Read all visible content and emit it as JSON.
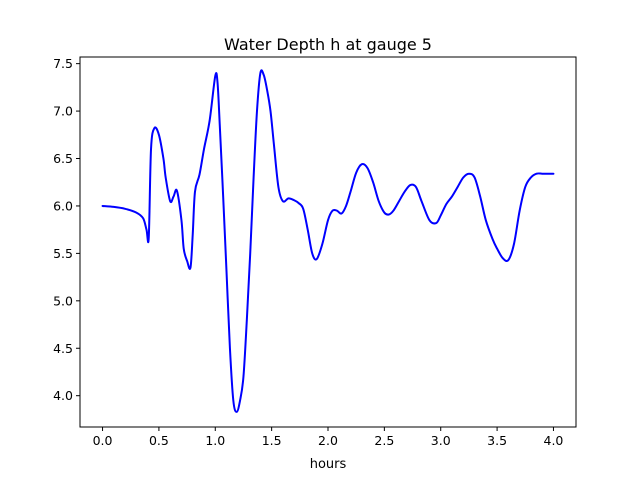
{
  "chart_data": {
    "type": "line",
    "title": "Water Depth h at gauge 5",
    "xlabel": "hours",
    "ylabel": "",
    "xlim": [
      -0.2,
      4.2
    ],
    "ylim": [
      3.67,
      7.57
    ],
    "xticks": [
      0.0,
      0.5,
      1.0,
      1.5,
      2.0,
      2.5,
      3.0,
      3.5,
      4.0
    ],
    "xtick_labels": [
      "0.0",
      "0.5",
      "1.0",
      "1.5",
      "2.0",
      "2.5",
      "3.0",
      "3.5",
      "4.0"
    ],
    "yticks": [
      4.0,
      4.5,
      5.0,
      5.5,
      6.0,
      6.5,
      7.0,
      7.5
    ],
    "ytick_labels": [
      "4.0",
      "4.5",
      "5.0",
      "5.5",
      "6.0",
      "6.5",
      "7.0",
      "7.5"
    ],
    "grid": false,
    "legend": "none",
    "series": [
      {
        "color": "#0000ff",
        "x": [
          0.0,
          0.1,
          0.2,
          0.3,
          0.36,
          0.39,
          0.41,
          0.43,
          0.46,
          0.5,
          0.54,
          0.56,
          0.6,
          0.63,
          0.66,
          0.7,
          0.72,
          0.75,
          0.78,
          0.8,
          0.82,
          0.86,
          0.9,
          0.95,
          1.0,
          1.02,
          1.04,
          1.07,
          1.1,
          1.13,
          1.16,
          1.19,
          1.22,
          1.25,
          1.28,
          1.31,
          1.34,
          1.37,
          1.4,
          1.43,
          1.46,
          1.49,
          1.52,
          1.56,
          1.6,
          1.65,
          1.7,
          1.74,
          1.78,
          1.82,
          1.86,
          1.9,
          1.95,
          2.0,
          2.04,
          2.08,
          2.12,
          2.16,
          2.2,
          2.25,
          2.3,
          2.35,
          2.4,
          2.45,
          2.5,
          2.54,
          2.58,
          2.63,
          2.68,
          2.73,
          2.78,
          2.83,
          2.9,
          2.96,
          3.0,
          3.05,
          3.1,
          3.15,
          3.2,
          3.25,
          3.3,
          3.35,
          3.4,
          3.46,
          3.5,
          3.55,
          3.6,
          3.65,
          3.7,
          3.75,
          3.8,
          3.85,
          3.9,
          3.95,
          4.0
        ],
        "y": [
          6.0,
          5.99,
          5.97,
          5.93,
          5.87,
          5.75,
          5.67,
          6.6,
          6.82,
          6.75,
          6.5,
          6.3,
          6.05,
          6.1,
          6.16,
          5.85,
          5.55,
          5.42,
          5.35,
          5.7,
          6.15,
          6.33,
          6.6,
          6.9,
          7.37,
          7.3,
          6.85,
          6.1,
          5.3,
          4.5,
          3.95,
          3.83,
          3.95,
          4.2,
          4.8,
          5.5,
          6.3,
          7.0,
          7.4,
          7.38,
          7.22,
          7.0,
          6.65,
          6.2,
          6.05,
          6.08,
          6.06,
          6.03,
          5.97,
          5.75,
          5.5,
          5.44,
          5.6,
          5.85,
          5.95,
          5.95,
          5.92,
          6.0,
          6.15,
          6.35,
          6.44,
          6.4,
          6.25,
          6.05,
          5.93,
          5.91,
          5.95,
          6.05,
          6.15,
          6.22,
          6.2,
          6.05,
          5.85,
          5.82,
          5.9,
          6.02,
          6.1,
          6.2,
          6.3,
          6.34,
          6.3,
          6.1,
          5.85,
          5.65,
          5.55,
          5.45,
          5.43,
          5.6,
          5.95,
          6.2,
          6.3,
          6.34,
          6.34,
          6.34,
          6.34
        ]
      }
    ]
  }
}
